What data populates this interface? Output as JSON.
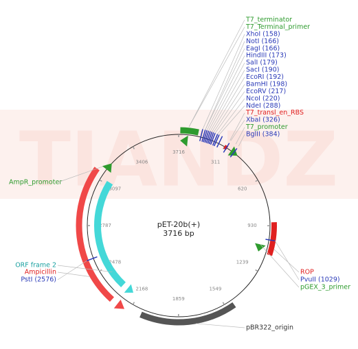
{
  "watermark": "TIANDZ",
  "plasmid": {
    "name": "pET-20b(+)",
    "size": "3716 bp",
    "ticks": [
      "311",
      "620",
      "930",
      "1239",
      "1549",
      "1859",
      "2168",
      "2478",
      "2787",
      "3097",
      "3406",
      "3716"
    ]
  },
  "site_labels": [
    {
      "text": "T7_terminator",
      "color": "#2e9b2e"
    },
    {
      "text": "T7_Terminal_primer",
      "color": "#2e9b2e"
    },
    {
      "text": "XhoI (158)",
      "color": "#2a3ab8"
    },
    {
      "text": "NotI (166)",
      "color": "#2a3ab8"
    },
    {
      "text": "EagI (166)",
      "color": "#2a3ab8"
    },
    {
      "text": "HindIII (173)",
      "color": "#2a3ab8"
    },
    {
      "text": "SalI (179)",
      "color": "#2a3ab8"
    },
    {
      "text": "SacI (190)",
      "color": "#2a3ab8"
    },
    {
      "text": "EcoRI (192)",
      "color": "#2a3ab8"
    },
    {
      "text": "BamHI (198)",
      "color": "#2a3ab8"
    },
    {
      "text": "EcoRV (217)",
      "color": "#2a3ab8"
    },
    {
      "text": "NcoI (220)",
      "color": "#2a3ab8"
    },
    {
      "text": "NdeI (288)",
      "color": "#2a3ab8"
    },
    {
      "text": "T7_transl_en_RBS",
      "color": "#e02020"
    },
    {
      "text": "XbaI (326)",
      "color": "#2a3ab8"
    },
    {
      "text": "T7_promoter",
      "color": "#2e9b2e"
    },
    {
      "text": "BglII (384)",
      "color": "#2a3ab8"
    }
  ],
  "left_labels": [
    {
      "text": "AmpR_promoter",
      "color": "#2e9b2e"
    },
    {
      "text": "ORF frame 2",
      "color": "#1aa0a0"
    },
    {
      "text": "Ampicillin",
      "color": "#e02020"
    },
    {
      "text": "PstI (2576)",
      "color": "#2a3ab8"
    }
  ],
  "right_labels": [
    {
      "text": "ROP",
      "color": "#e02020"
    },
    {
      "text": "PvuII (1029)",
      "color": "#2a3ab8"
    },
    {
      "text": "pGEX_3_primer",
      "color": "#2e9b2e"
    },
    {
      "text": "pBR322_origin",
      "color": "#333333"
    }
  ]
}
